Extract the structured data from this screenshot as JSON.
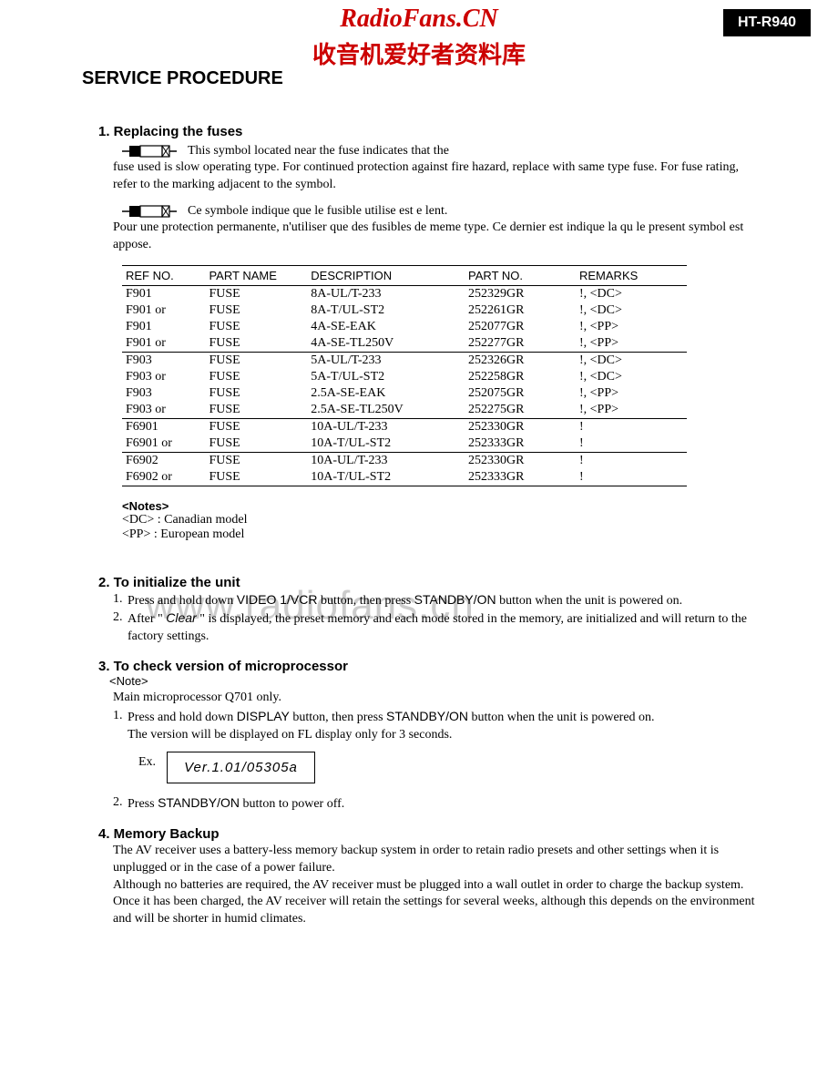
{
  "model_badge": "HT-R940",
  "overlay": {
    "site": "RadioFans.CN",
    "subtitle": "收音机爱好者资料库",
    "watermark": "www.radiofans.cn"
  },
  "main_heading": "SERVICE PROCEDURE",
  "section1": {
    "heading": "1. Replacing the fuses",
    "para1_line1": "This symbol located near the fuse indicates that the",
    "para1_rest": "fuse used is slow operating type. For continued protection against fire hazard, replace with same type fuse. For fuse rating, refer to the marking adjacent to the symbol.",
    "para2_line1": "Ce symbole indique que le fusible utilise est e lent.",
    "para2_rest": "Pour une protection permanente, n'utiliser que des fusibles de meme type. Ce dernier est indique la qu le present symbol est appose.",
    "table": {
      "headers": [
        "REF NO.",
        "PART NAME",
        "DESCRIPTION",
        "PART NO.",
        "REMARKS"
      ],
      "col_widths": [
        "90px",
        "110px",
        "170px",
        "120px",
        "120px"
      ],
      "groups": [
        [
          [
            "F901",
            "FUSE",
            "8A-UL/T-233",
            "252329GR",
            "!, <DC>"
          ],
          [
            "F901 or",
            "FUSE",
            "8A-T/UL-ST2",
            "252261GR",
            "!, <DC>"
          ],
          [
            "F901",
            "FUSE",
            "4A-SE-EAK",
            "252077GR",
            "!, <PP>"
          ],
          [
            "F901 or",
            "FUSE",
            "4A-SE-TL250V",
            "252277GR",
            "!, <PP>"
          ]
        ],
        [
          [
            "F903",
            "FUSE",
            "5A-UL/T-233",
            "252326GR",
            "!, <DC>"
          ],
          [
            "F903 or",
            "FUSE",
            "5A-T/UL-ST2",
            "252258GR",
            "!, <DC>"
          ],
          [
            "F903",
            "FUSE",
            "2.5A-SE-EAK",
            "252075GR",
            "!, <PP>"
          ],
          [
            "F903 or",
            "FUSE",
            "2.5A-SE-TL250V",
            "252275GR",
            "!, <PP>"
          ]
        ],
        [
          [
            "F6901",
            "FUSE",
            "10A-UL/T-233",
            "252330GR",
            "!"
          ],
          [
            "F6901 or",
            "FUSE",
            "10A-T/UL-ST2",
            "252333GR",
            "!"
          ]
        ],
        [
          [
            "F6902",
            "FUSE",
            "10A-UL/T-233",
            "252330GR",
            "!"
          ],
          [
            "F6902 or",
            "FUSE",
            "10A-T/UL-ST2",
            "252333GR",
            "!"
          ]
        ]
      ]
    },
    "notes": {
      "head": "<Notes>",
      "l1": "<DC> : Canadian model",
      "l2": "<PP> : European model"
    }
  },
  "section2": {
    "heading": "2. To initialize the unit",
    "item1_pre": "Press and hold down ",
    "item1_btn1": "VIDEO 1/VCR",
    "item1_mid": " button, then press ",
    "item1_btn2": "STANDBY/ON",
    "item1_post": " button when the unit is powered on.",
    "item2_pre": "After \" ",
    "item2_clear": "Clear",
    "item2_post": " \" is displayed, the preset memory and each mode stored in the memory, are initialized and will return to the factory settings."
  },
  "section3": {
    "heading": "3. To check version of microprocessor",
    "note_label": "<Note>",
    "note_text": "Main microprocessor Q701 only.",
    "item1_pre": "Press and hold down ",
    "item1_btn1": "DISPLAY",
    "item1_mid": " button, then press ",
    "item1_btn2": "STANDBY/ON",
    "item1_post": " button when the unit is powered on.",
    "item1_line2": "The version will be displayed on FL display only for 3 seconds.",
    "ex_label": "Ex.",
    "ex_value": "Ver.1.01/05305a",
    "item2_pre": "Press ",
    "item2_btn": "STANDBY/ON",
    "item2_post": " button to power off."
  },
  "section4": {
    "heading": "4. Memory Backup",
    "body": "The AV receiver uses a battery-less memory backup system in order to retain radio presets and other settings when it is unplugged or in the case of a power failure.\nAlthough no batteries are required, the AV receiver must be plugged into a wall outlet in order to charge the backup system. Once it has been charged, the AV receiver will retain the settings for several weeks, although this depends on the environment and will be shorter in humid climates."
  }
}
